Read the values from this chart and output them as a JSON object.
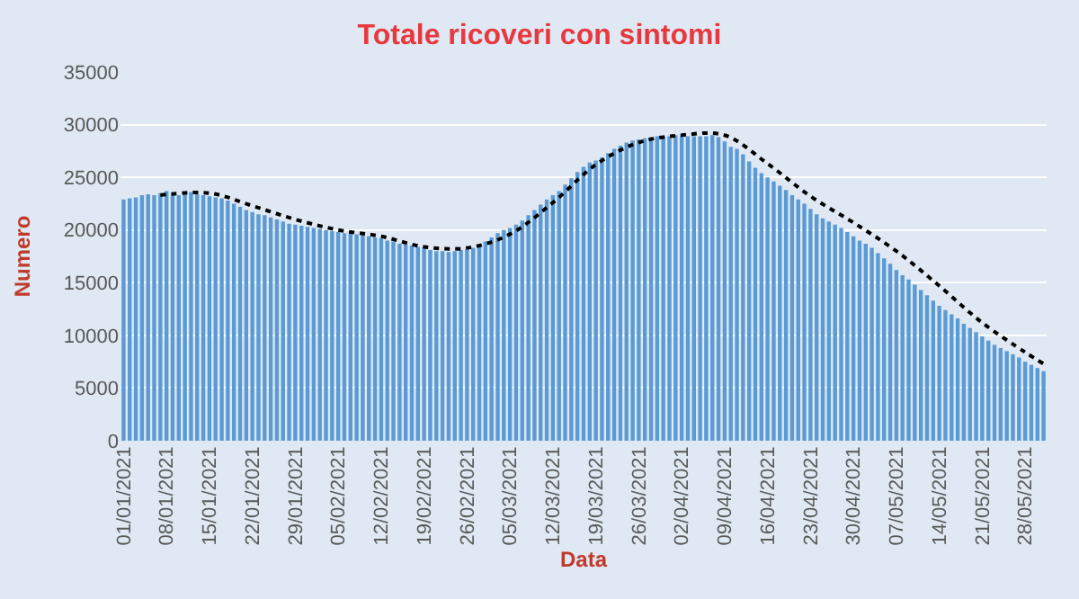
{
  "chart_data": {
    "type": "bar",
    "title": "Totale ricoveri con sintomi",
    "xlabel": "Data",
    "ylabel": "Numero",
    "x": [
      "2021-01-01",
      "2021-01-02",
      "2021-01-03",
      "2021-01-04",
      "2021-01-05",
      "2021-01-06",
      "2021-01-07",
      "2021-01-08",
      "2021-01-09",
      "2021-01-10",
      "2021-01-11",
      "2021-01-12",
      "2021-01-13",
      "2021-01-14",
      "2021-01-15",
      "2021-01-16",
      "2021-01-17",
      "2021-01-18",
      "2021-01-19",
      "2021-01-20",
      "2021-01-21",
      "2021-01-22",
      "2021-01-23",
      "2021-01-24",
      "2021-01-25",
      "2021-01-26",
      "2021-01-27",
      "2021-01-28",
      "2021-01-29",
      "2021-01-30",
      "2021-01-31",
      "2021-02-01",
      "2021-02-02",
      "2021-02-03",
      "2021-02-04",
      "2021-02-05",
      "2021-02-06",
      "2021-02-07",
      "2021-02-08",
      "2021-02-09",
      "2021-02-10",
      "2021-02-11",
      "2021-02-12",
      "2021-02-13",
      "2021-02-14",
      "2021-02-15",
      "2021-02-16",
      "2021-02-17",
      "2021-02-18",
      "2021-02-19",
      "2021-02-20",
      "2021-02-21",
      "2021-02-22",
      "2021-02-23",
      "2021-02-24",
      "2021-02-25",
      "2021-02-26",
      "2021-02-27",
      "2021-02-28",
      "2021-03-01",
      "2021-03-02",
      "2021-03-03",
      "2021-03-04",
      "2021-03-05",
      "2021-03-06",
      "2021-03-07",
      "2021-03-08",
      "2021-03-09",
      "2021-03-10",
      "2021-03-11",
      "2021-03-12",
      "2021-03-13",
      "2021-03-14",
      "2021-03-15",
      "2021-03-16",
      "2021-03-17",
      "2021-03-18",
      "2021-03-19",
      "2021-03-20",
      "2021-03-21",
      "2021-03-22",
      "2021-03-23",
      "2021-03-24",
      "2021-03-25",
      "2021-03-26",
      "2021-03-27",
      "2021-03-28",
      "2021-03-29",
      "2021-03-30",
      "2021-03-31",
      "2021-04-01",
      "2021-04-02",
      "2021-04-03",
      "2021-04-04",
      "2021-04-05",
      "2021-04-06",
      "2021-04-07",
      "2021-04-08",
      "2021-04-09",
      "2021-04-10",
      "2021-04-11",
      "2021-04-12",
      "2021-04-13",
      "2021-04-14",
      "2021-04-15",
      "2021-04-16",
      "2021-04-17",
      "2021-04-18",
      "2021-04-19",
      "2021-04-20",
      "2021-04-21",
      "2021-04-22",
      "2021-04-23",
      "2021-04-24",
      "2021-04-25",
      "2021-04-26",
      "2021-04-27",
      "2021-04-28",
      "2021-04-29",
      "2021-04-30",
      "2021-05-01",
      "2021-05-02",
      "2021-05-03",
      "2021-05-04",
      "2021-05-05",
      "2021-05-06",
      "2021-05-07",
      "2021-05-08",
      "2021-05-09",
      "2021-05-10",
      "2021-05-11",
      "2021-05-12",
      "2021-05-13",
      "2021-05-14",
      "2021-05-15",
      "2021-05-16",
      "2021-05-17",
      "2021-05-18",
      "2021-05-19",
      "2021-05-20",
      "2021-05-21",
      "2021-05-22",
      "2021-05-23",
      "2021-05-24",
      "2021-05-25",
      "2021-05-26",
      "2021-05-27",
      "2021-05-28",
      "2021-05-29",
      "2021-05-30",
      "2021-05-31"
    ],
    "series": [
      {
        "color": "#5b9bd5",
        "values": [
          22900,
          23000,
          23100,
          23300,
          23400,
          23300,
          23500,
          23700,
          23400,
          23300,
          23500,
          23600,
          23400,
          23300,
          23200,
          23100,
          23000,
          22800,
          22500,
          22200,
          21900,
          21700,
          21500,
          21400,
          21200,
          21000,
          20800,
          20600,
          20500,
          20400,
          20300,
          20200,
          20100,
          20000,
          19900,
          19800,
          19700,
          19700,
          19600,
          19500,
          19400,
          19300,
          19200,
          19000,
          18900,
          18700,
          18600,
          18500,
          18400,
          18300,
          18100,
          18000,
          18000,
          17900,
          18000,
          18100,
          18200,
          18300,
          18600,
          18900,
          19300,
          19700,
          20000,
          20200,
          20500,
          20900,
          21400,
          21900,
          22400,
          22900,
          23300,
          23700,
          24300,
          24900,
          25500,
          26000,
          26400,
          26600,
          26900,
          27300,
          27700,
          28000,
          28300,
          28500,
          28600,
          28700,
          28800,
          28900,
          28900,
          28900,
          29000,
          29000,
          28900,
          28900,
          28900,
          28900,
          29000,
          28800,
          28400,
          27900,
          27700,
          27200,
          26500,
          25900,
          25400,
          25000,
          24600,
          24200,
          23800,
          23300,
          22900,
          22500,
          22000,
          21500,
          21100,
          20800,
          20500,
          20200,
          19800,
          19400,
          19000,
          18700,
          18300,
          17800,
          17300,
          16800,
          16200,
          15700,
          15300,
          14800,
          14300,
          13800,
          13300,
          12800,
          12400,
          12000,
          11600,
          11100,
          10700,
          10300,
          9900,
          9500,
          9100,
          8800,
          8500,
          8200,
          7900,
          7500,
          7200,
          6900,
          6600
        ]
      },
      {
        "type": "line",
        "color": "#000000",
        "line_style": "dotted",
        "marker": "none",
        "x": [
          "2021-01-07",
          "2021-01-15",
          "2021-01-22",
          "2021-01-29",
          "2021-02-05",
          "2021-02-12",
          "2021-02-19",
          "2021-02-26",
          "2021-03-05",
          "2021-03-12",
          "2021-03-19",
          "2021-03-26",
          "2021-04-02",
          "2021-04-09",
          "2021-04-16",
          "2021-04-23",
          "2021-04-30",
          "2021-05-07",
          "2021-05-14",
          "2021-05-21",
          "2021-05-28",
          "2021-05-31"
        ],
        "values": [
          23300,
          23500,
          22300,
          21000,
          20000,
          19400,
          18400,
          18300,
          19600,
          22600,
          26200,
          28300,
          29000,
          29000,
          26300,
          23200,
          20700,
          18000,
          14700,
          11200,
          8400,
          7300
        ]
      }
    ],
    "xlim": [
      "2020-12-31T12:00",
      "2021-05-31T12:00"
    ],
    "xticks": [
      {
        "value": "2021-01-01",
        "label": "01/01/2021"
      },
      {
        "value": "2021-01-08",
        "label": "08/01/2021"
      },
      {
        "value": "2021-01-15",
        "label": "15/01/2021"
      },
      {
        "value": "2021-01-22",
        "label": "22/01/2021"
      },
      {
        "value": "2021-01-29",
        "label": "29/01/2021"
      },
      {
        "value": "2021-02-05",
        "label": "05/02/2021"
      },
      {
        "value": "2021-02-12",
        "label": "12/02/2021"
      },
      {
        "value": "2021-02-19",
        "label": "19/02/2021"
      },
      {
        "value": "2021-02-26",
        "label": "26/02/2021"
      },
      {
        "value": "2021-03-05",
        "label": "05/03/2021"
      },
      {
        "value": "2021-03-12",
        "label": "12/03/2021"
      },
      {
        "value": "2021-03-19",
        "label": "19/03/2021"
      },
      {
        "value": "2021-03-26",
        "label": "26/03/2021"
      },
      {
        "value": "2021-04-02",
        "label": "02/04/2021"
      },
      {
        "value": "2021-04-09",
        "label": "09/04/2021"
      },
      {
        "value": "2021-04-16",
        "label": "16/04/2021"
      },
      {
        "value": "2021-04-23",
        "label": "23/04/2021"
      },
      {
        "value": "2021-04-30",
        "label": "30/04/2021"
      },
      {
        "value": "2021-05-07",
        "label": "07/05/2021"
      },
      {
        "value": "2021-05-14",
        "label": "14/05/2021"
      },
      {
        "value": "2021-05-21",
        "label": "21/05/2021"
      },
      {
        "value": "2021-05-28",
        "label": "28/05/2021"
      }
    ],
    "ylim": [
      0,
      35000
    ],
    "yticks": [
      0,
      5000,
      10000,
      15000,
      20000,
      25000,
      30000,
      35000
    ],
    "grid": "y"
  }
}
